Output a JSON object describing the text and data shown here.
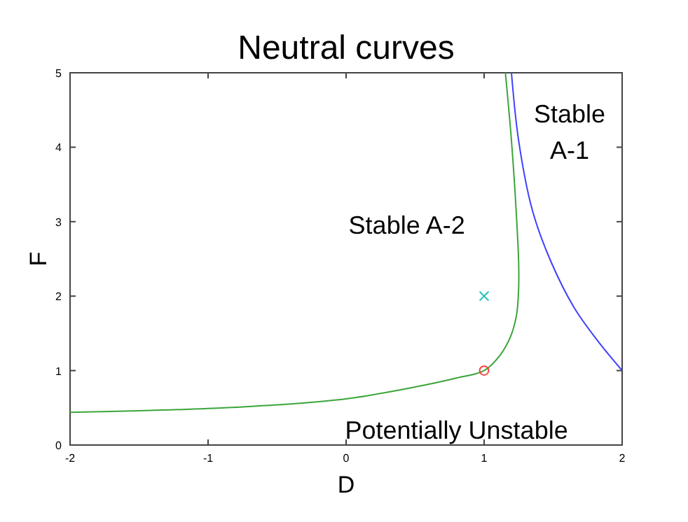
{
  "chart_data": {
    "type": "line",
    "title": "Neutral curves",
    "xlabel": "D",
    "ylabel": "F",
    "xlim": [
      -2,
      2
    ],
    "ylim": [
      0,
      5
    ],
    "xticks": [
      -2,
      -1,
      0,
      1,
      2
    ],
    "yticks": [
      0,
      1,
      2,
      3,
      4,
      5
    ],
    "grid": false,
    "series": [
      {
        "color": "#3aa53a",
        "x": [
          -2,
          -1.5,
          -1,
          -0.5,
          0,
          0.5,
          0.8,
          1,
          1.113,
          1.19,
          1.235,
          1.25,
          1.25,
          1.232,
          1.198,
          1.154
        ],
        "values": [
          0.44,
          0.46,
          0.49,
          0.54,
          0.62,
          0.78,
          0.9,
          1,
          1.2,
          1.45,
          1.75,
          2.1,
          2.46,
          3.15,
          4.09,
          5
        ]
      },
      {
        "color": "#4040ff",
        "x": [
          1.198,
          1.25,
          1.35,
          1.485,
          1.654,
          1.823,
          2
        ],
        "values": [
          5,
          4.09,
          3.15,
          2.46,
          1.84,
          1.4,
          1
        ]
      },
      {
        "type": "scatter",
        "color": "#ff4040",
        "marker": "circle",
        "x": [
          1
        ],
        "values": [
          1
        ]
      },
      {
        "type": "scatter",
        "color": "#20c0c0",
        "marker": "cross",
        "x": [
          1
        ],
        "values": [
          2
        ]
      }
    ],
    "annotations": [
      "Stable A-2",
      "Stable\nA-1",
      "Potentially Unstable"
    ]
  }
}
